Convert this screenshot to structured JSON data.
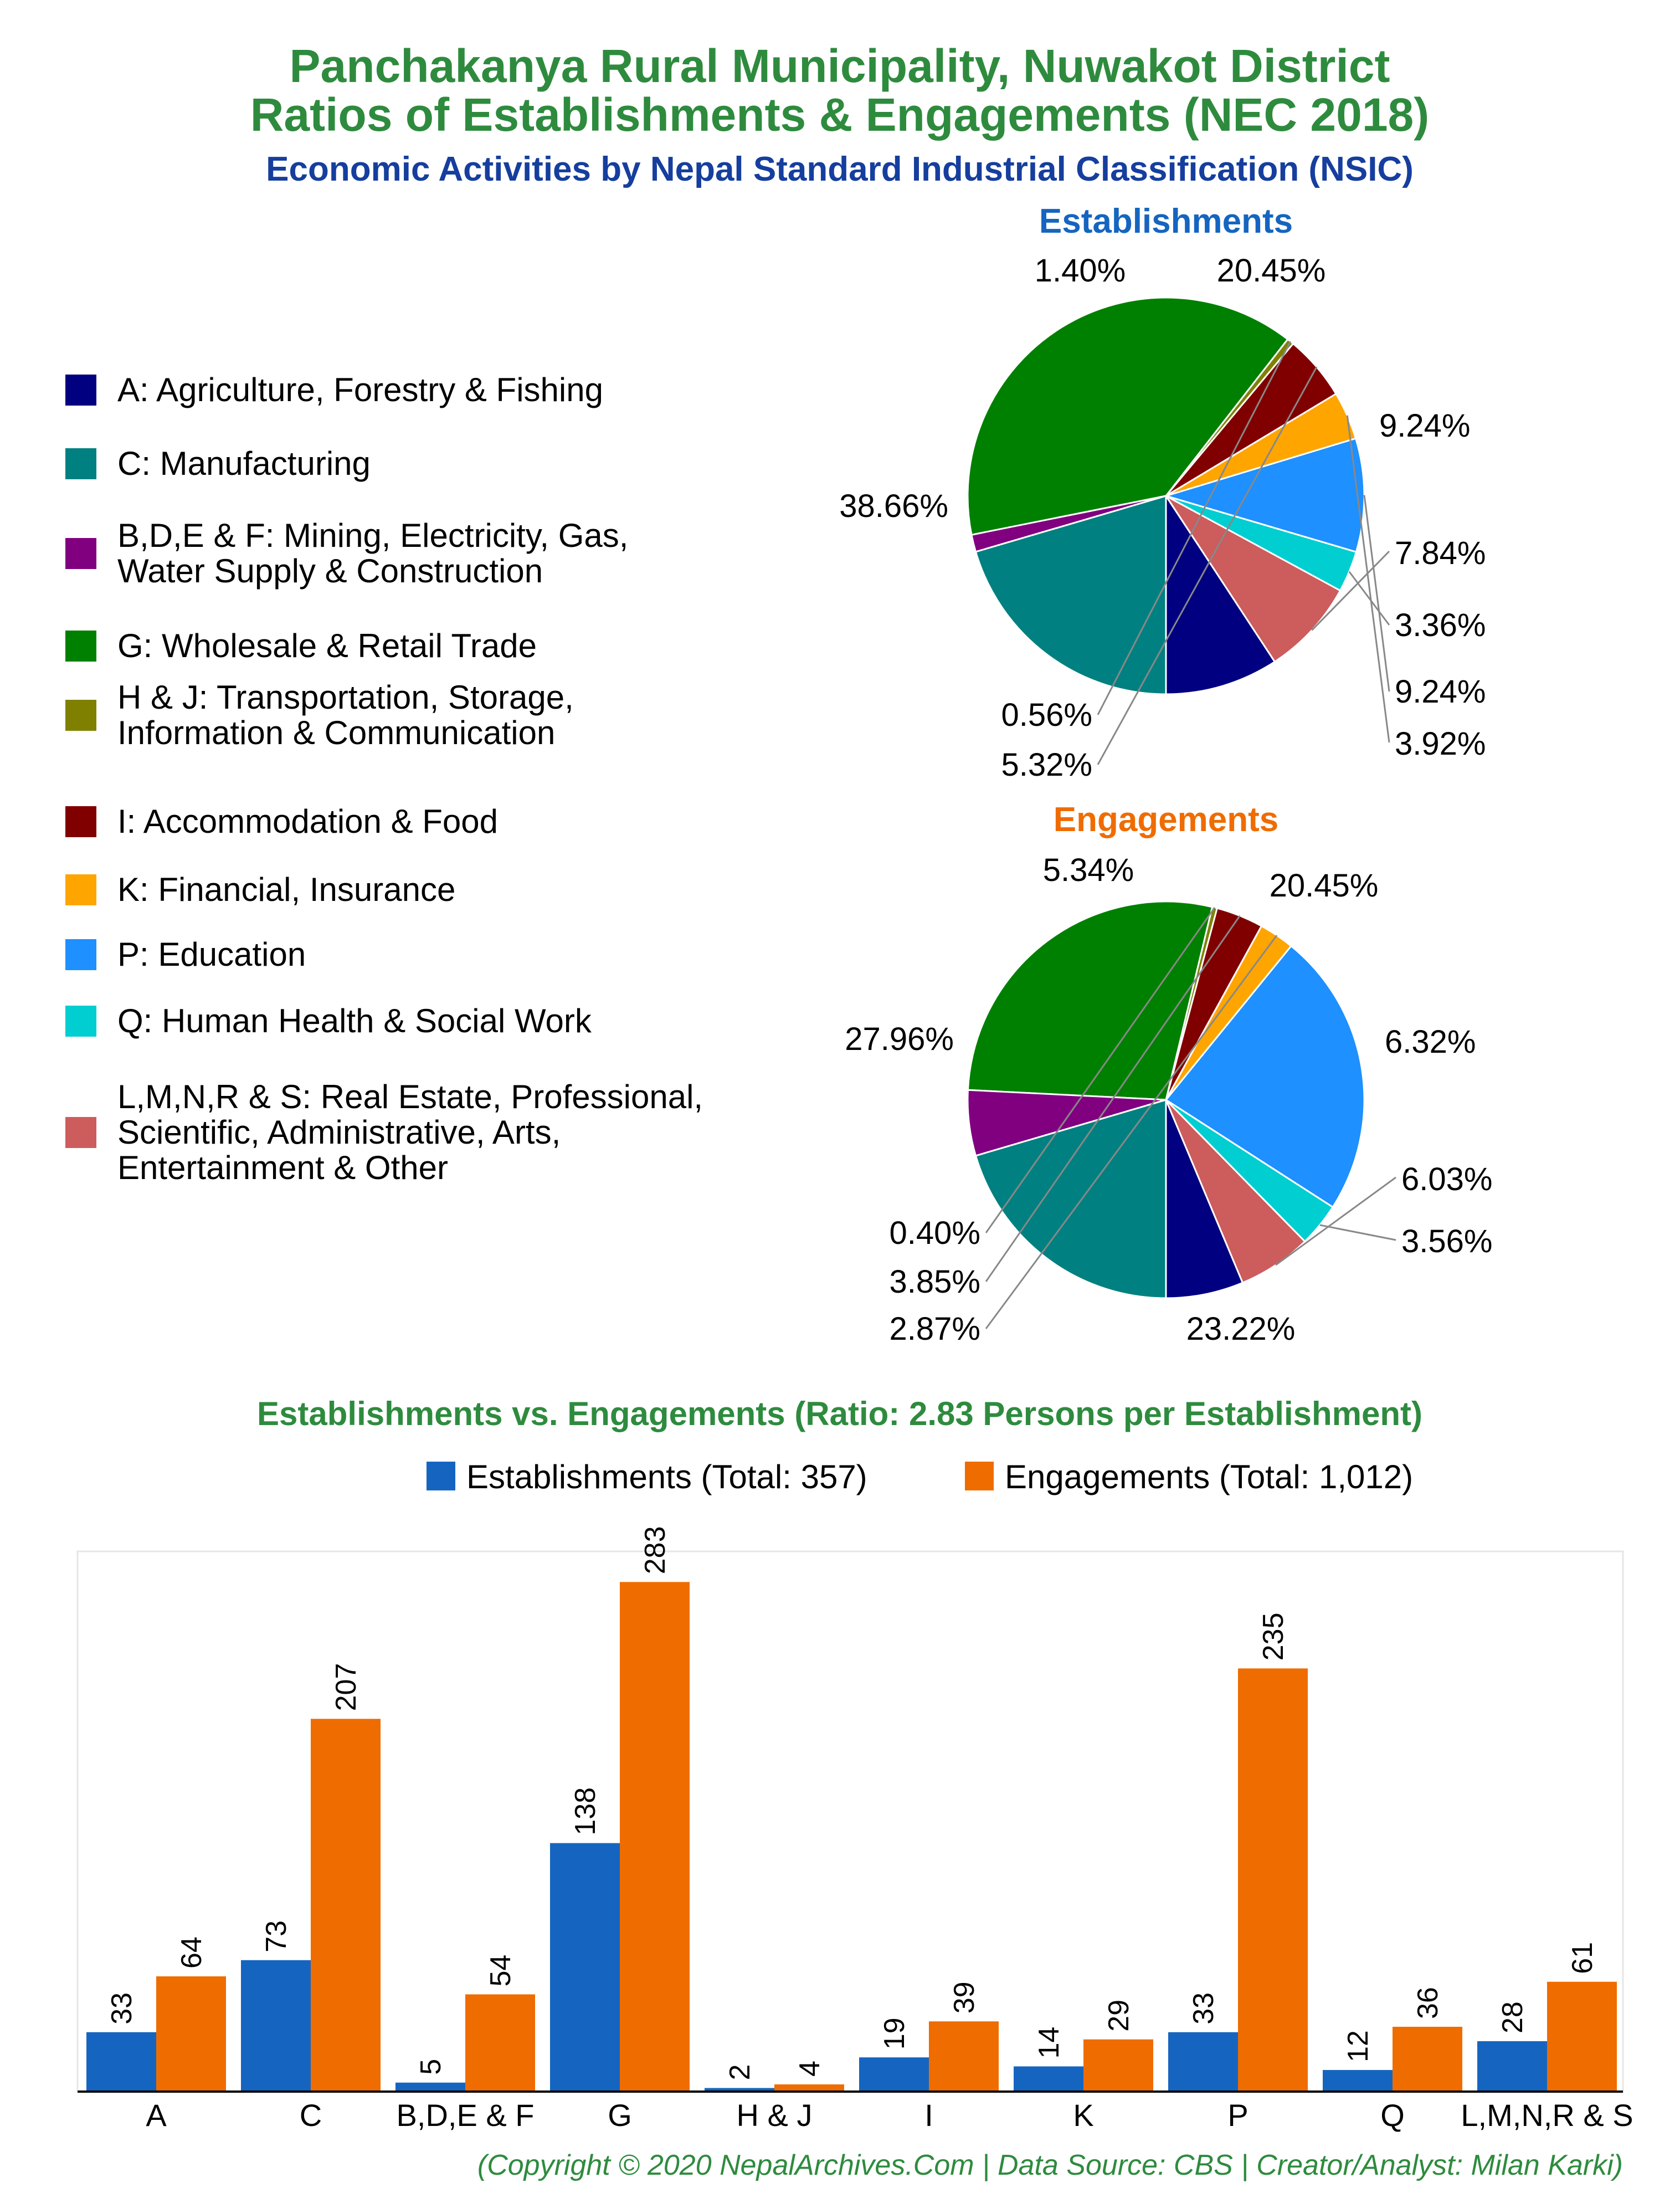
{
  "header": {
    "title_line1": "Panchakanya Rural Municipality, Nuwakot District",
    "title_line2": "Ratios of Establishments & Engagements (NEC 2018)",
    "subtitle": "Economic Activities by Nepal Standard Industrial Classification (NSIC)"
  },
  "colors": {
    "title": "#2e8b3e",
    "subtitle": "#153e9e",
    "establishments": "#1565c0",
    "engagements": "#ef6c00"
  },
  "legend": {
    "items": [
      {
        "lines": [
          "A: Agriculture, Forestry & Fishing"
        ],
        "color": "#000080"
      },
      {
        "lines": [
          "C: Manufacturing"
        ],
        "color": "#008080"
      },
      {
        "lines": [
          "B,D,E & F: Mining, Electricity, Gas,",
          "Water Supply & Construction"
        ],
        "color": "#800080"
      },
      {
        "lines": [
          "G: Wholesale & Retail Trade"
        ],
        "color": "#008000"
      },
      {
        "lines": [
          "H & J: Transportation, Storage,",
          "Information & Communication"
        ],
        "color": "#808000"
      },
      {
        "lines": [
          "I: Accommodation & Food"
        ],
        "color": "#800000"
      },
      {
        "lines": [
          "K: Financial, Insurance"
        ],
        "color": "#ffa500"
      },
      {
        "lines": [
          "P: Education"
        ],
        "color": "#1e90ff"
      },
      {
        "lines": [
          "Q: Human Health & Social Work"
        ],
        "color": "#00ced1"
      },
      {
        "lines": [
          "L,M,N,R & S: Real Estate, Professional,",
          "Scientific, Administrative, Arts,",
          "Entertainment & Other"
        ],
        "color": "#cd5c5c"
      }
    ]
  },
  "chart_data": [
    {
      "type": "pie",
      "title": "Establishments",
      "slices": [
        {
          "label": "9.24%",
          "value": 9.24,
          "color": "#000080"
        },
        {
          "label": "7.84%",
          "value": 7.84,
          "color": "#cd5c5c"
        },
        {
          "label": "3.36%",
          "value": 3.36,
          "color": "#00ced1"
        },
        {
          "label": "9.24%",
          "value": 9.24,
          "color": "#1e90ff"
        },
        {
          "label": "3.92%",
          "value": 3.92,
          "color": "#ffa500"
        },
        {
          "label": "5.32%",
          "value": 5.32,
          "color": "#800000"
        },
        {
          "label": "0.56%",
          "value": 0.56,
          "color": "#808000"
        },
        {
          "label": "38.66%",
          "value": 38.66,
          "color": "#008000"
        },
        {
          "label": "1.40%",
          "value": 1.4,
          "color": "#800080"
        },
        {
          "label": "20.45%",
          "value": 20.45,
          "color": "#008080"
        }
      ]
    },
    {
      "type": "pie",
      "title": "Engagements",
      "slices": [
        {
          "label": "6.32%",
          "value": 6.32,
          "color": "#000080"
        },
        {
          "label": "6.03%",
          "value": 6.03,
          "color": "#cd5c5c"
        },
        {
          "label": "3.56%",
          "value": 3.56,
          "color": "#00ced1"
        },
        {
          "label": "23.22%",
          "value": 23.22,
          "color": "#1e90ff"
        },
        {
          "label": "2.87%",
          "value": 2.87,
          "color": "#ffa500"
        },
        {
          "label": "3.85%",
          "value": 3.85,
          "color": "#800000"
        },
        {
          "label": "0.40%",
          "value": 0.4,
          "color": "#808000"
        },
        {
          "label": "27.96%",
          "value": 27.96,
          "color": "#008000"
        },
        {
          "label": "5.34%",
          "value": 5.34,
          "color": "#800080"
        },
        {
          "label": "20.45%",
          "value": 20.45,
          "color": "#008080"
        }
      ]
    },
    {
      "type": "bar",
      "title": "Establishments vs. Engagements (Ratio: 2.83 Persons per Establishment)",
      "categories": [
        "A",
        "C",
        "B,D,E & F",
        "G",
        "H & J",
        "I",
        "K",
        "P",
        "Q",
        "L,M,N,R & S"
      ],
      "series": [
        {
          "name": "Establishments (Total: 357)",
          "values": [
            33,
            73,
            5,
            138,
            2,
            19,
            14,
            33,
            12,
            28
          ],
          "color": "#1565c0"
        },
        {
          "name": "Engagements (Total: 1,012)",
          "values": [
            64,
            207,
            54,
            283,
            4,
            39,
            29,
            235,
            36,
            61
          ],
          "color": "#ef6c00"
        }
      ],
      "ylim": [
        0,
        300
      ],
      "grid": false,
      "legend_position": "top"
    }
  ],
  "footer": {
    "credit": "(Copyright © 2020 NepalArchives.Com | Data Source: CBS | Creator/Analyst: Milan Karki)"
  }
}
